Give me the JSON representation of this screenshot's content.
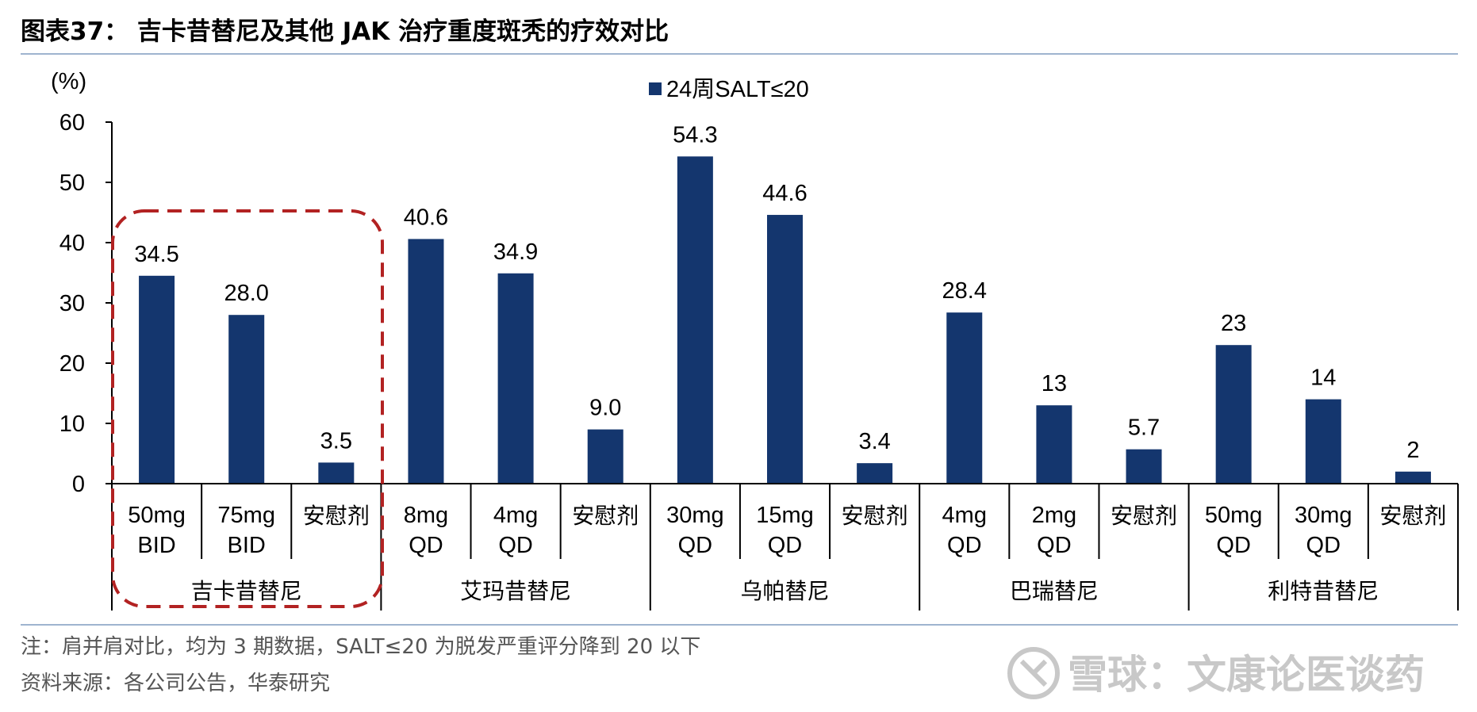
{
  "header": {
    "title": "图表37：  吉卡昔替尼及其他 JAK 治疗重度斑秃的疗效对比"
  },
  "chart_data": {
    "type": "bar",
    "unit_label": "(%)",
    "ylim": [
      0,
      60
    ],
    "yticks": [
      0,
      10,
      20,
      30,
      40,
      50,
      60
    ],
    "series": [
      {
        "name": "24周SALT≤20",
        "color": "#14366e"
      }
    ],
    "groups": [
      {
        "name": "吉卡昔替尼",
        "highlight": true,
        "bars": [
          {
            "label": [
              "50mg",
              "BID"
            ],
            "value": 34.5,
            "value_label": "34.5"
          },
          {
            "label": [
              "75mg",
              "BID"
            ],
            "value": 28.0,
            "value_label": "28.0"
          },
          {
            "label": [
              "安慰剂"
            ],
            "value": 3.5,
            "value_label": "3.5"
          }
        ]
      },
      {
        "name": "艾玛昔替尼",
        "bars": [
          {
            "label": [
              "8mg",
              "QD"
            ],
            "value": 40.6,
            "value_label": "40.6"
          },
          {
            "label": [
              "4mg",
              "QD"
            ],
            "value": 34.9,
            "value_label": "34.9"
          },
          {
            "label": [
              "安慰剂"
            ],
            "value": 9.0,
            "value_label": "9.0"
          }
        ]
      },
      {
        "name": "乌帕替尼",
        "bars": [
          {
            "label": [
              "30mg",
              "QD"
            ],
            "value": 54.3,
            "value_label": "54.3"
          },
          {
            "label": [
              "15mg",
              "QD"
            ],
            "value": 44.6,
            "value_label": "44.6"
          },
          {
            "label": [
              "安慰剂"
            ],
            "value": 3.4,
            "value_label": "3.4"
          }
        ]
      },
      {
        "name": "巴瑞替尼",
        "bars": [
          {
            "label": [
              "4mg",
              "QD"
            ],
            "value": 28.4,
            "value_label": "28.4"
          },
          {
            "label": [
              "2mg",
              "QD"
            ],
            "value": 13,
            "value_label": "13"
          },
          {
            "label": [
              "安慰剂"
            ],
            "value": 5.7,
            "value_label": "5.7"
          }
        ]
      },
      {
        "name": "利特昔替尼",
        "bars": [
          {
            "label": [
              "50mg",
              "QD"
            ],
            "value": 23,
            "value_label": "23"
          },
          {
            "label": [
              "30mg",
              "QD"
            ],
            "value": 14,
            "value_label": "14"
          },
          {
            "label": [
              "安慰剂"
            ],
            "value": 2,
            "value_label": "2"
          }
        ]
      }
    ]
  },
  "footer": {
    "note": "注：肩并肩对比，均为 3 期数据，SALT≤20 为脱发严重评分降到 20 以下",
    "source": "资料来源：各公司公告，华泰研究"
  },
  "watermark": {
    "text": "雪球：文康论医谈药",
    "icon": "snowball-logo-icon"
  },
  "colors": {
    "bar": "#14366e",
    "rule": "#9fb4cf",
    "highlight_box": "#b22222",
    "axis": "#000000"
  }
}
